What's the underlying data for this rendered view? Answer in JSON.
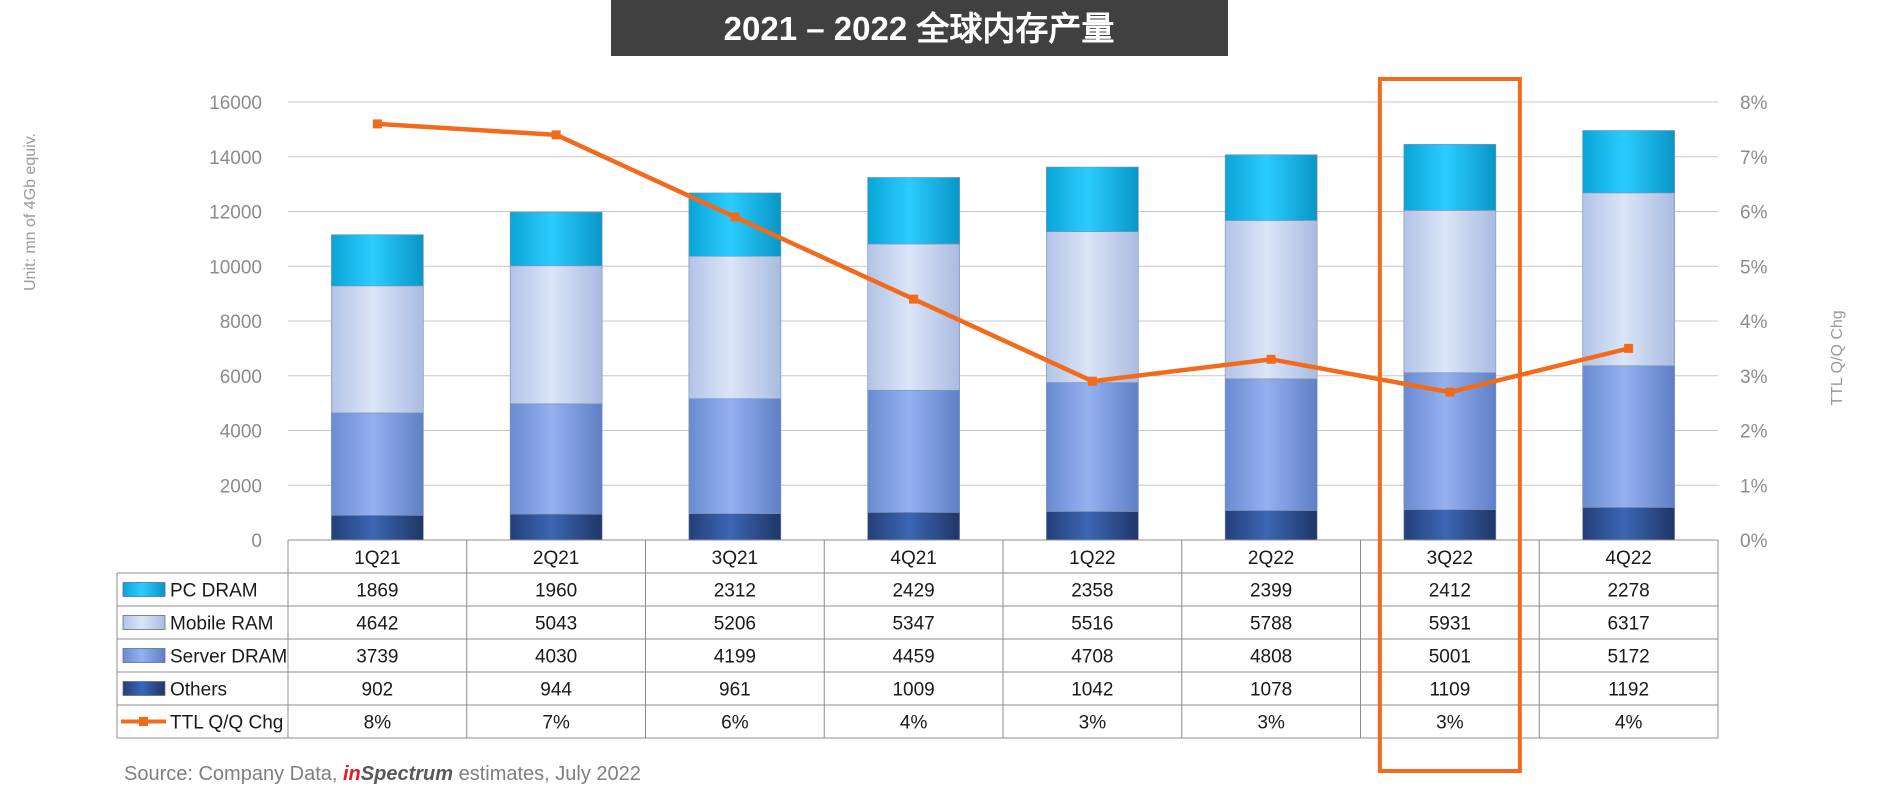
{
  "chart_data": {
    "type": "bar",
    "stacked": true,
    "title": "2021 – 2022 全球内存产量",
    "categories": [
      "1Q21",
      "2Q21",
      "3Q21",
      "4Q21",
      "1Q22",
      "2Q22",
      "3Q22",
      "4Q22"
    ],
    "series": [
      {
        "name": "Others",
        "values": [
          902,
          944,
          961,
          1009,
          1042,
          1078,
          1109,
          1192
        ],
        "color": "#2f5597"
      },
      {
        "name": "Server DRAM",
        "values": [
          3739,
          4030,
          4199,
          4459,
          4708,
          4808,
          5001,
          5172
        ],
        "color": "#7f9fe0"
      },
      {
        "name": "Mobile RAM",
        "values": [
          4642,
          5043,
          5206,
          5347,
          5516,
          5788,
          5931,
          6317
        ],
        "color": "#c5d3f0"
      },
      {
        "name": "PC DRAM",
        "values": [
          1869,
          1960,
          2312,
          2429,
          2358,
          2399,
          2412,
          2278
        ],
        "color": "#14b9ee"
      }
    ],
    "line_series": {
      "name": "TTL Q/Q Chg",
      "axis": "right",
      "values": [
        7.6,
        7.4,
        5.9,
        4.4,
        2.9,
        3.3,
        2.7,
        3.5
      ],
      "table_labels": [
        "8%",
        "7%",
        "6%",
        "4%",
        "3%",
        "3%",
        "3%",
        "4%"
      ],
      "color": "#f26b1d"
    },
    "ylabel": "Unit: mn of 4Gb equiv.",
    "y2label": "TTL Q/Q Chg",
    "ylim": [
      0,
      16000
    ],
    "y_ticks": [
      "0",
      "2000",
      "4000",
      "6000",
      "8000",
      "10000",
      "12000",
      "14000",
      "16000"
    ],
    "y2lim": [
      0,
      8
    ],
    "y2_ticks": [
      "0%",
      "1%",
      "2%",
      "3%",
      "4%",
      "5%",
      "6%",
      "7%",
      "8%"
    ],
    "grid": true,
    "highlight_category": "3Q22",
    "highlight_color": "#f26b1d"
  },
  "table": {
    "rows": [
      "PC DRAM",
      "Mobile RAM",
      "Server DRAM",
      "Others",
      "TTL Q/Q Chg"
    ]
  },
  "source": {
    "prefix": "Source: Company Data, ",
    "brand_red": "in",
    "brand_rest": "Spectrum",
    "suffix": " estimates, July 2022"
  }
}
